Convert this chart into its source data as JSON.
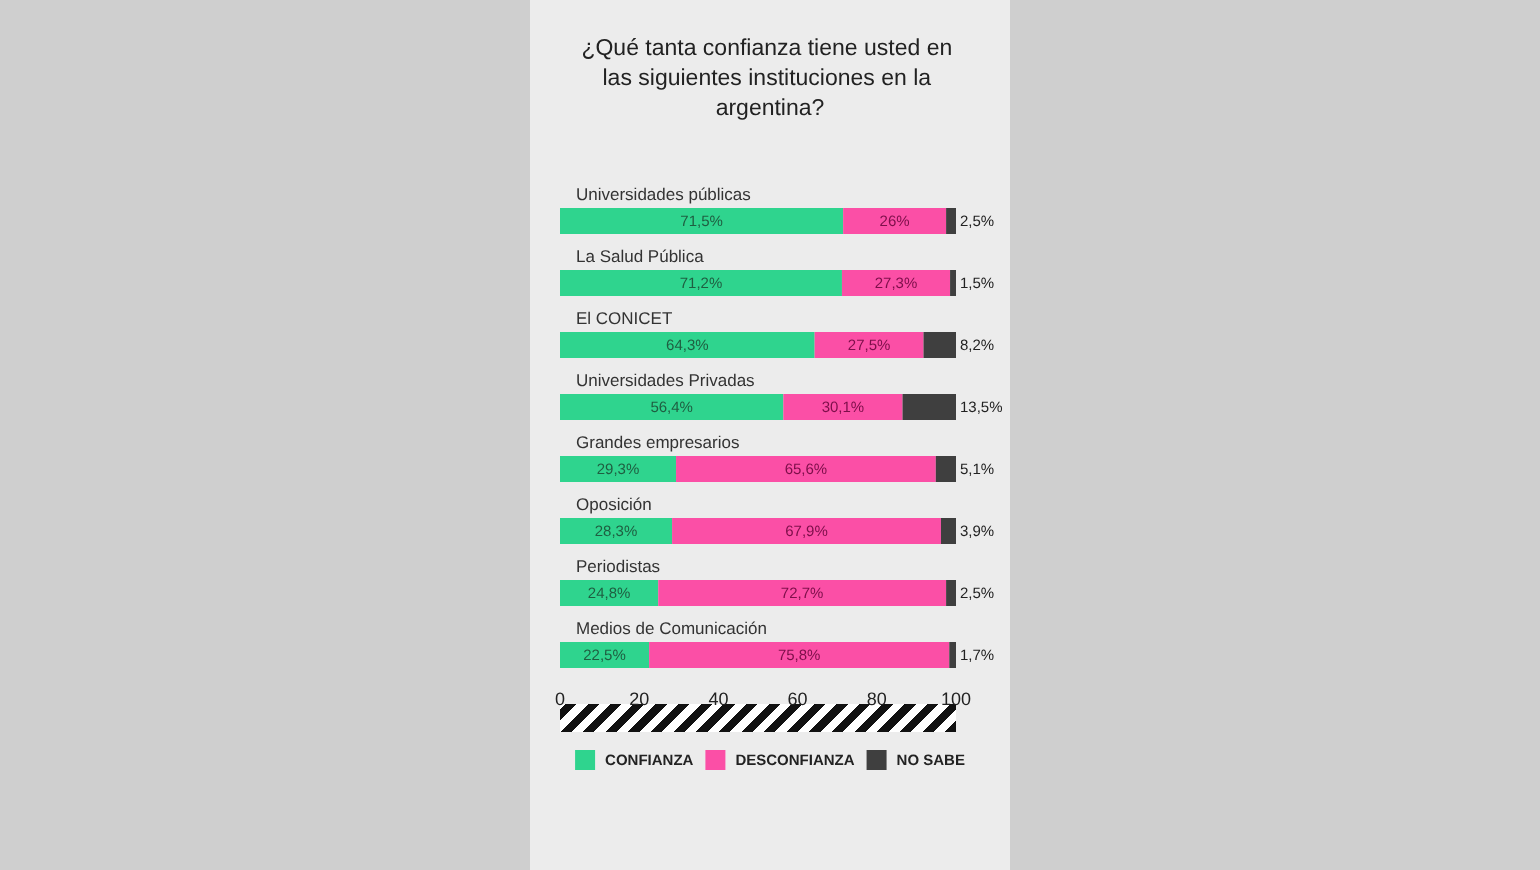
{
  "chart_data": {
    "type": "bar",
    "orientation": "horizontal",
    "stacked": true,
    "title": "¿Qué tanta confianza tiene usted en las siguientes instituciones en la argentina?",
    "categories": [
      "Universidades públicas",
      "La Salud Pública",
      "El CONICET",
      "Universidades Privadas",
      "Grandes empresarios",
      "Oposición",
      "Periodistas",
      "Medios de Comunicación"
    ],
    "series": [
      {
        "name": "CONFIANZA",
        "color": "#2fd48e",
        "values": [
          71.5,
          71.2,
          64.3,
          56.4,
          29.3,
          28.3,
          24.8,
          22.5
        ],
        "value_labels": [
          "71,5%",
          "71,2%",
          "64,3%",
          "56,4%",
          "29,3%",
          "28,3%",
          "24,8%",
          "22,5%"
        ]
      },
      {
        "name": "DESCONFIANZA",
        "color": "#fb4fa6",
        "values": [
          26,
          27.3,
          27.5,
          30.1,
          65.6,
          67.9,
          72.7,
          75.8
        ],
        "value_labels": [
          "26%",
          "27,3%",
          "27,5%",
          "30,1%",
          "65,6%",
          "67,9%",
          "72,7%",
          "75,8%"
        ]
      },
      {
        "name": "NO SABE",
        "color": "#3f3f3f",
        "values": [
          2.5,
          1.5,
          8.2,
          13.5,
          5.1,
          3.9,
          2.5,
          1.7
        ],
        "value_labels": [
          "2,5%",
          "1,5%",
          "8,2%",
          "13,5%",
          "5,1%",
          "3,9%",
          "2,5%",
          "1,7%"
        ]
      }
    ],
    "xlim": [
      0,
      100
    ],
    "xticks": [
      0,
      20,
      40,
      60,
      80,
      100
    ],
    "grid": false,
    "legend": "bottom"
  }
}
